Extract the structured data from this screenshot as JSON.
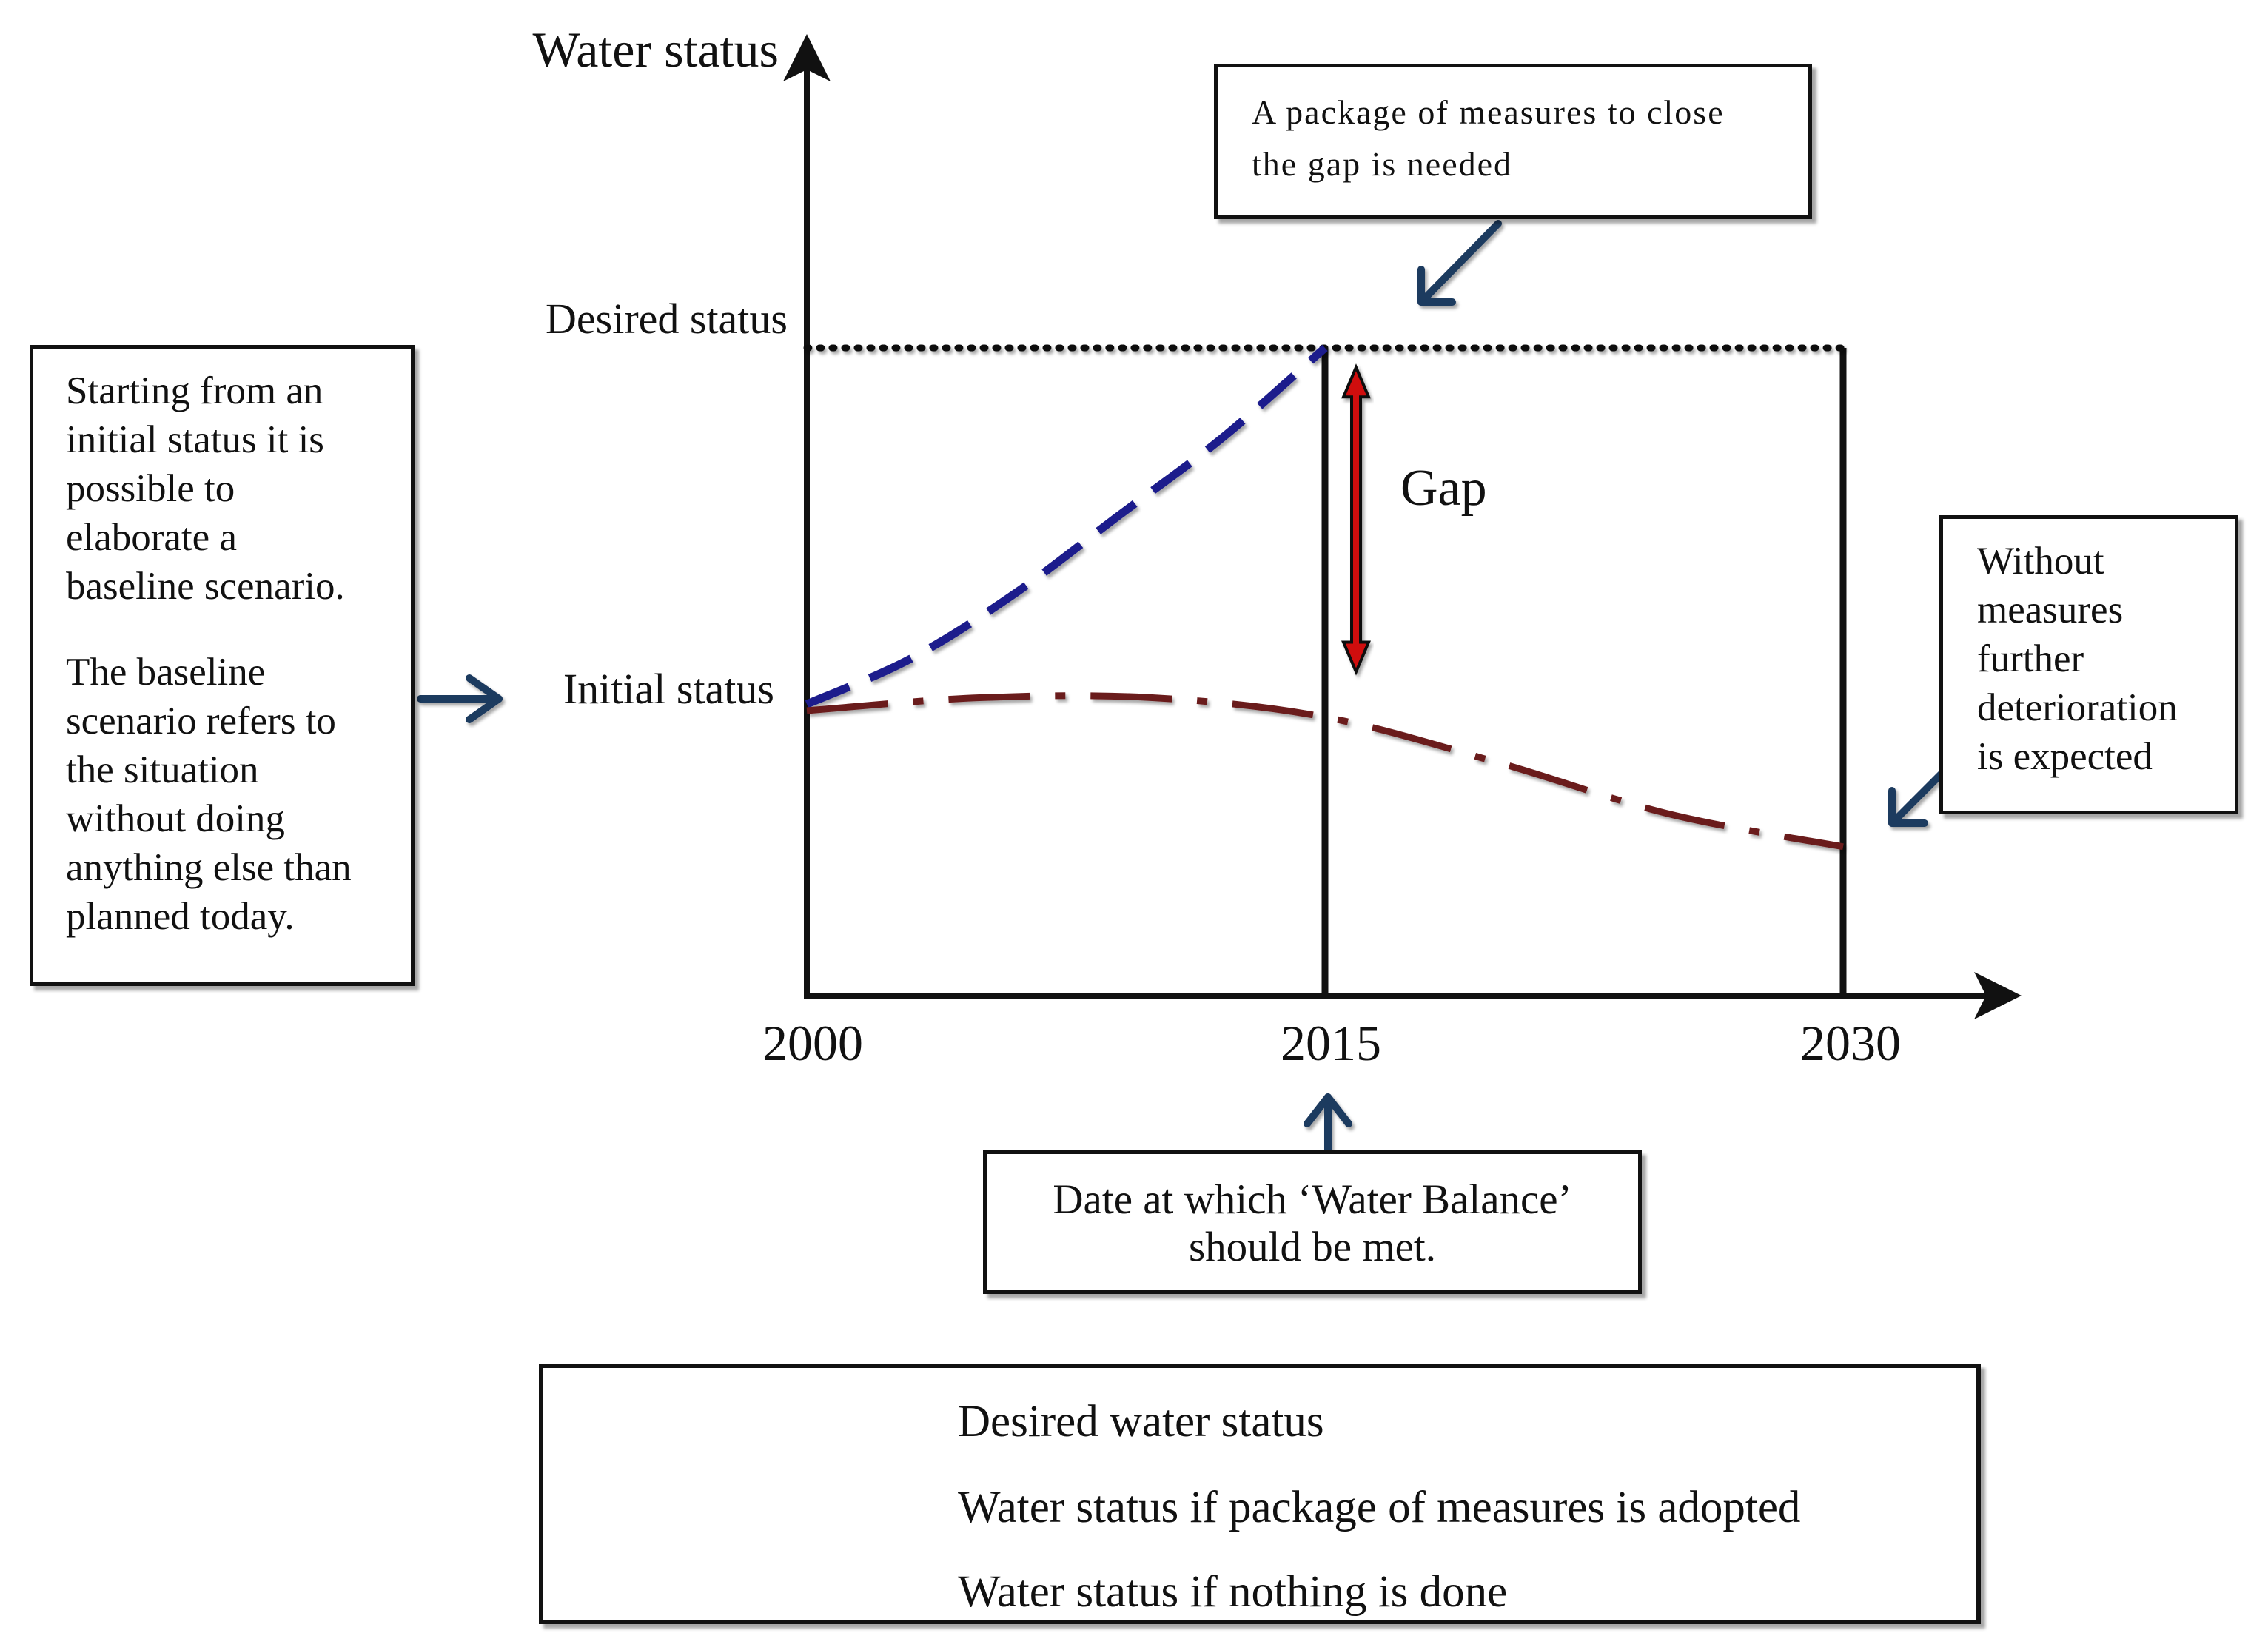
{
  "chart_data": {
    "type": "line",
    "title": "",
    "ylabel": "Water status",
    "xlabel": "",
    "x_ticks": [
      "2000",
      "2015",
      "2030"
    ],
    "y_levels": [
      "Desired status",
      "Initial status"
    ],
    "xlim": [
      2000,
      2033
    ],
    "ylim": [
      0,
      10
    ],
    "series": [
      {
        "name": "Desired water status",
        "style": "dotted",
        "color": "#111111",
        "x": [
          2000,
          2030
        ],
        "y": [
          10,
          10
        ]
      },
      {
        "name": "Water status if package of measures is adopted",
        "style": "dashed",
        "color": "#1a1a8c",
        "x": [
          2000,
          2003,
          2006,
          2009,
          2012,
          2015
        ],
        "y": [
          4.5,
          5.2,
          6.2,
          7.4,
          8.6,
          10
        ]
      },
      {
        "name": "Water status if nothing is done",
        "style": "dash-dot",
        "color": "#6b1a1a",
        "x": [
          2000,
          2005,
          2010,
          2015,
          2020,
          2025,
          2030
        ],
        "y": [
          4.4,
          4.6,
          4.6,
          4.3,
          3.6,
          2.8,
          2.3
        ]
      }
    ],
    "gap_label": "Gap",
    "gap_x": 2015.9,
    "gap_y": [
      5.0,
      9.7
    ]
  },
  "annotations": {
    "left_box_para1": "Starting from an initial status it is possible to elaborate a baseline scenario.",
    "left_box_para2": "The baseline scenario refers to the situation without doing anything else than planned today.",
    "left_box_lines1": [
      "Starting from an",
      "initial status it is",
      "possible to",
      "elaborate a",
      "baseline scenario."
    ],
    "left_box_lines2": [
      "The baseline",
      "scenario refers to",
      "the situation",
      "without doing",
      "anything else than",
      "planned today."
    ],
    "top_box_lines": [
      "A package of measures to close",
      "the gap is needed"
    ],
    "right_box_lines": [
      "Without",
      "measures",
      "further",
      "deterioration",
      "is expected"
    ],
    "bottom_box_lines": [
      "Date at which ‘Water Balance’",
      "should be met."
    ]
  },
  "colors": {
    "axis": "#111111",
    "arrow": "#1f3a5f",
    "gap_arrow_fill": "#d01010",
    "blue_line": "#1a1a8c",
    "red_line": "#6b1a1a"
  }
}
